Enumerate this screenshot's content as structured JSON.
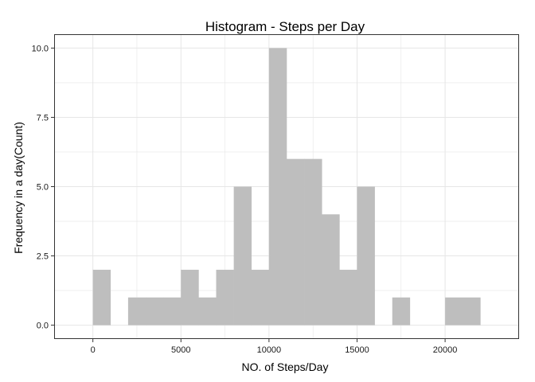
{
  "chart_data": {
    "type": "bar",
    "title": "Histogram - Steps per Day",
    "xlabel": "NO. of Steps/Day",
    "ylabel": "Frequency in a day(Count)",
    "bin_width": 1000,
    "bins": [
      {
        "x_start": 0,
        "count": 2
      },
      {
        "x_start": 1000,
        "count": 0
      },
      {
        "x_start": 2000,
        "count": 1
      },
      {
        "x_start": 3000,
        "count": 1
      },
      {
        "x_start": 4000,
        "count": 1
      },
      {
        "x_start": 5000,
        "count": 2
      },
      {
        "x_start": 6000,
        "count": 1
      },
      {
        "x_start": 7000,
        "count": 2
      },
      {
        "x_start": 8000,
        "count": 5
      },
      {
        "x_start": 9000,
        "count": 2
      },
      {
        "x_start": 10000,
        "count": 10
      },
      {
        "x_start": 11000,
        "count": 6
      },
      {
        "x_start": 12000,
        "count": 6
      },
      {
        "x_start": 13000,
        "count": 4
      },
      {
        "x_start": 14000,
        "count": 2
      },
      {
        "x_start": 15000,
        "count": 5
      },
      {
        "x_start": 16000,
        "count": 0
      },
      {
        "x_start": 17000,
        "count": 1
      },
      {
        "x_start": 18000,
        "count": 0
      },
      {
        "x_start": 19000,
        "count": 0
      },
      {
        "x_start": 20000,
        "count": 1
      },
      {
        "x_start": 21000,
        "count": 1
      }
    ],
    "xlim": [
      -2200,
      24200
    ],
    "ylim": [
      -0.5,
      10.5
    ],
    "x_ticks": [
      0,
      5000,
      10000,
      15000,
      20000
    ],
    "x_tick_labels": [
      "0",
      "5000",
      "10000",
      "15000",
      "20000"
    ],
    "y_ticks": [
      0,
      2.5,
      5,
      7.5,
      10
    ],
    "y_tick_labels": [
      "0.0",
      "2.5",
      "5.0",
      "7.5",
      "10.0"
    ],
    "grid": true,
    "bar_color": "#bebebe",
    "grid_color": "#e6e6e6",
    "panel_border_color": "#333333"
  }
}
